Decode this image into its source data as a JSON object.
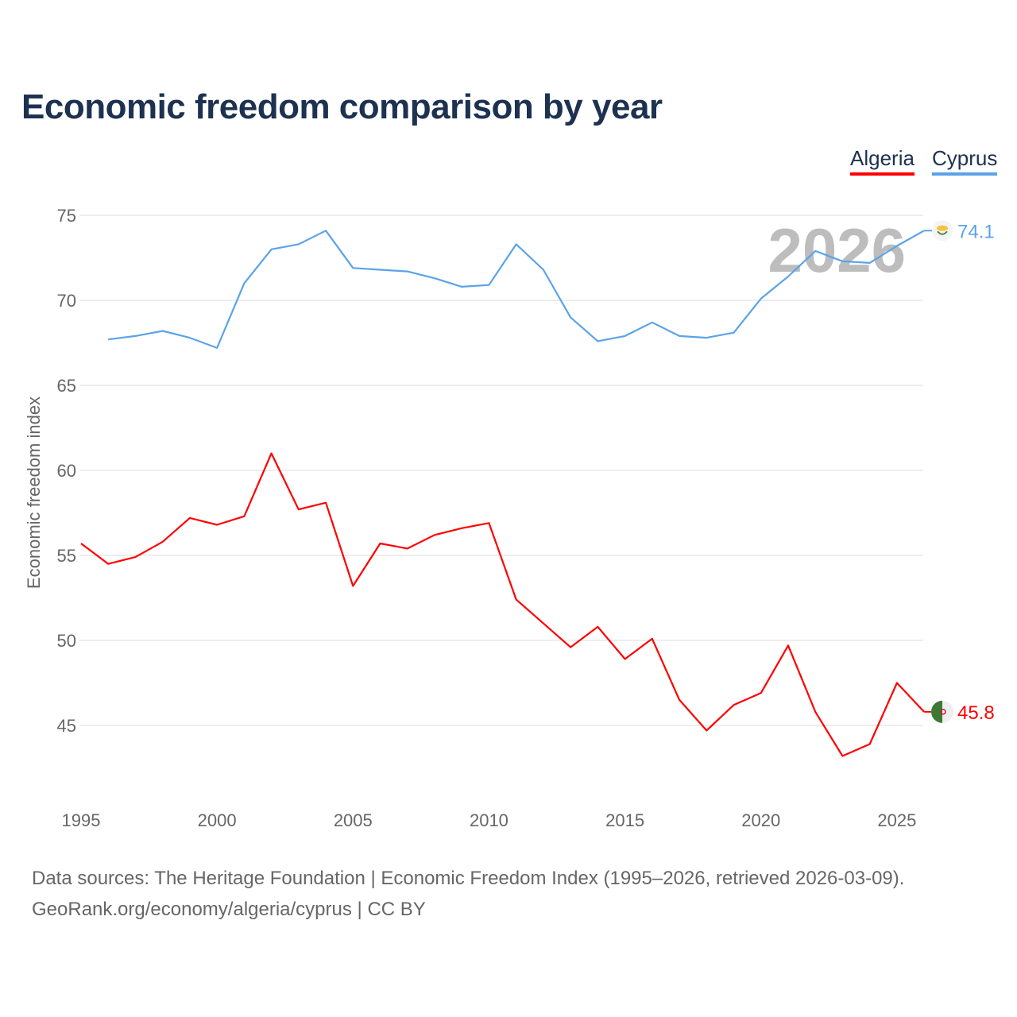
{
  "title": "Economic freedom comparison by year",
  "footer": {
    "line1": "Data sources: The Heritage Foundation | Economic Freedom Index (1995–2026, retrieved 2026-03-09).",
    "line2": "GeoRank.org/economy/algeria/cyprus | CC BY"
  },
  "chart_data": {
    "type": "line",
    "title": "Economic freedom comparison by year",
    "xlabel": "",
    "ylabel": "Economic freedom index",
    "xlim": [
      1995,
      2026
    ],
    "ylim": [
      41.5,
      76
    ],
    "xticks": [
      1995,
      2000,
      2005,
      2010,
      2015,
      2020,
      2025
    ],
    "yticks": [
      45,
      50,
      55,
      60,
      65,
      70,
      75
    ],
    "grid": true,
    "legend_position": "top-right",
    "watermark_year": "2026",
    "series": [
      {
        "name": "Algeria",
        "color": "#ff0000",
        "end_label": "45.8",
        "x": [
          1995,
          1996,
          1997,
          1998,
          1999,
          2000,
          2001,
          2002,
          2003,
          2004,
          2005,
          2006,
          2007,
          2008,
          2009,
          2010,
          2011,
          2012,
          2013,
          2014,
          2015,
          2016,
          2017,
          2018,
          2019,
          2020,
          2021,
          2022,
          2023,
          2024,
          2025,
          2026
        ],
        "values": [
          55.7,
          54.5,
          54.9,
          55.8,
          57.2,
          56.8,
          57.3,
          61.0,
          57.7,
          58.1,
          53.2,
          55.7,
          55.4,
          56.2,
          56.6,
          56.9,
          52.4,
          51.0,
          49.6,
          50.8,
          48.9,
          50.1,
          46.5,
          44.7,
          46.2,
          46.9,
          49.7,
          45.8,
          43.2,
          43.9,
          47.5,
          45.8
        ]
      },
      {
        "name": "Cyprus",
        "color": "#5ba3e8",
        "end_label": "74.1",
        "x": [
          1996,
          1997,
          1998,
          1999,
          2000,
          2001,
          2002,
          2003,
          2004,
          2005,
          2006,
          2007,
          2008,
          2009,
          2010,
          2011,
          2012,
          2013,
          2014,
          2015,
          2016,
          2017,
          2018,
          2019,
          2020,
          2021,
          2022,
          2023,
          2024,
          2025,
          2026
        ],
        "values": [
          67.7,
          67.9,
          68.2,
          67.8,
          67.2,
          71.0,
          73.0,
          73.3,
          74.1,
          71.9,
          71.8,
          71.7,
          71.3,
          70.8,
          70.9,
          73.3,
          71.8,
          69.0,
          67.6,
          67.9,
          68.7,
          67.9,
          67.8,
          68.1,
          70.1,
          71.4,
          72.9,
          72.3,
          72.2,
          73.2,
          74.1
        ]
      }
    ]
  }
}
